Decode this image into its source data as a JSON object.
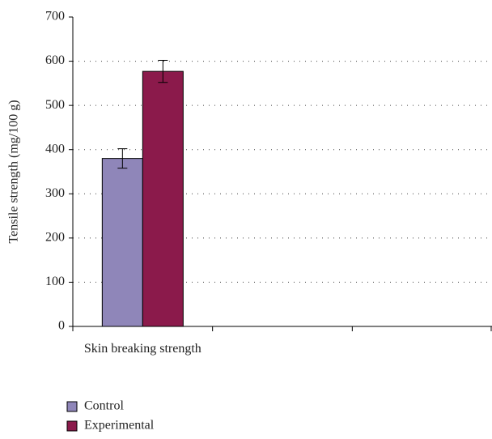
{
  "chart_data": {
    "type": "bar",
    "y_label": "Tensile strength (mg/100 g)",
    "categories": [
      "Skin breaking strength",
      null,
      null
    ],
    "series": [
      {
        "name": "Control",
        "color": "#8f86b9",
        "values": [
          380,
          null,
          null
        ],
        "errors": [
          22,
          null,
          null
        ]
      },
      {
        "name": "Experimental",
        "color": "#8b1a4b",
        "values": [
          577,
          null,
          null
        ],
        "errors": [
          25,
          null,
          null
        ]
      }
    ],
    "ylim": [
      0,
      700
    ],
    "yticks": [
      0,
      100,
      200,
      300,
      400,
      500,
      600,
      700
    ],
    "grid": true
  }
}
